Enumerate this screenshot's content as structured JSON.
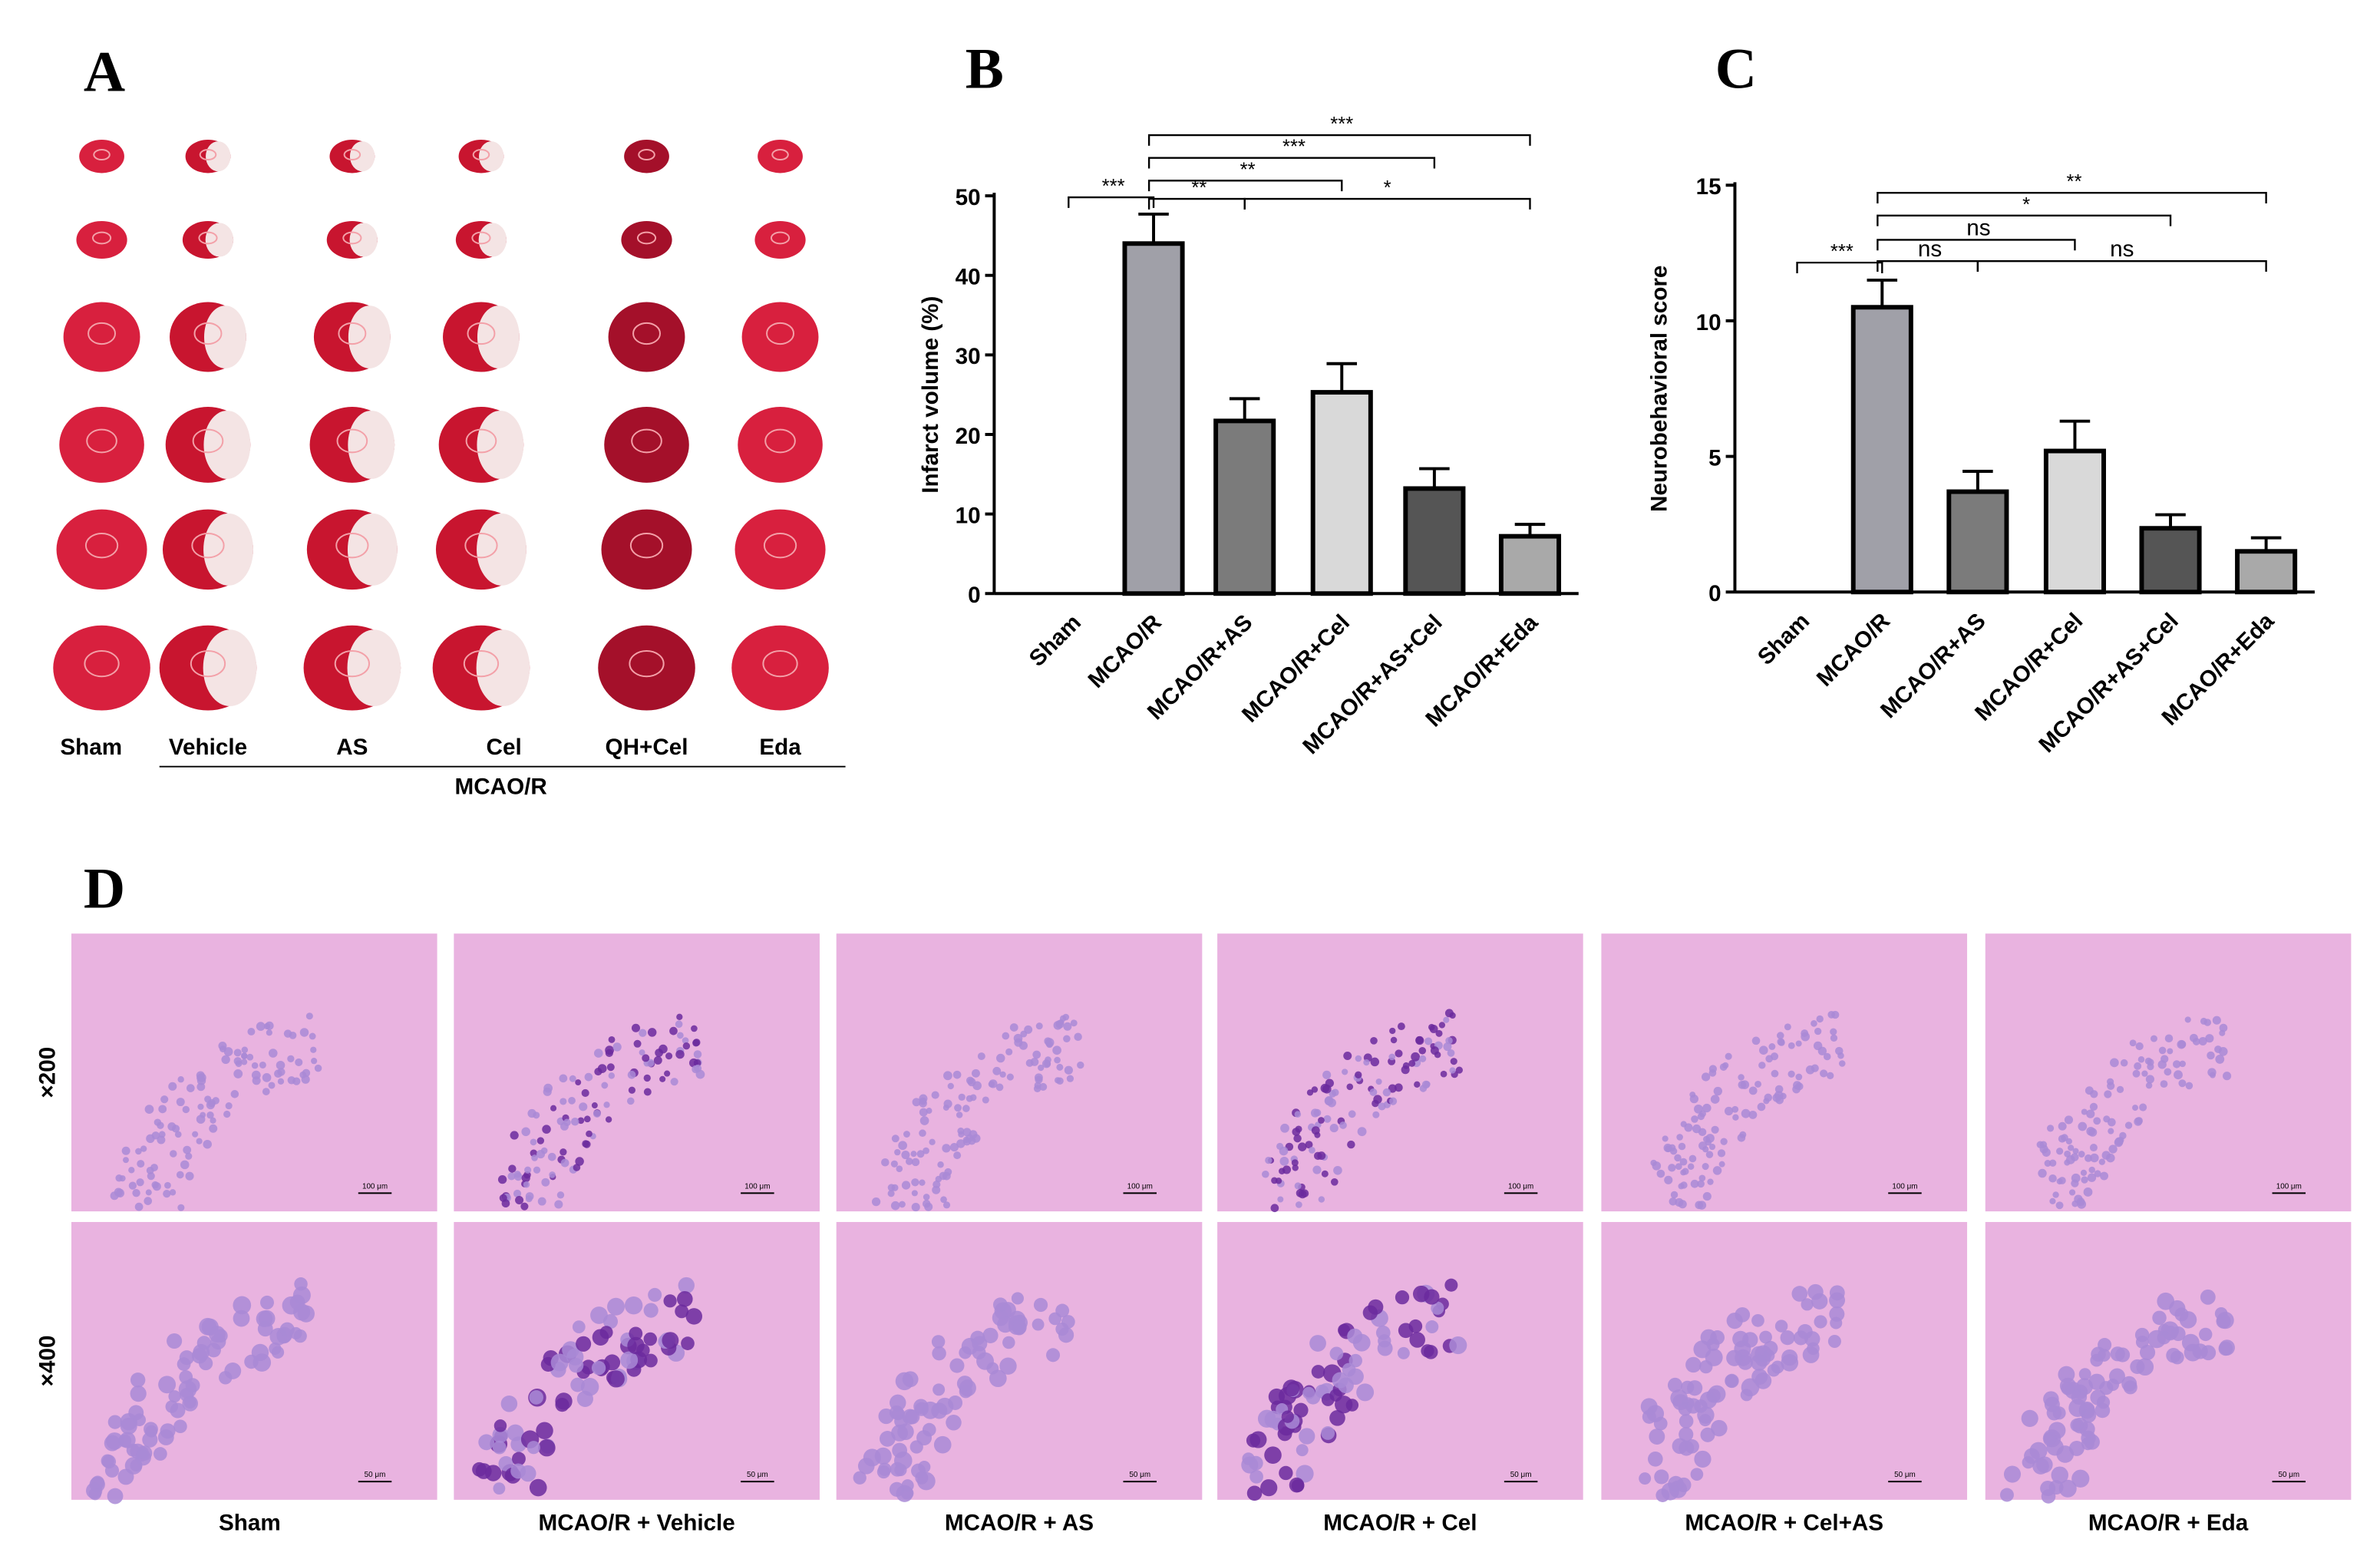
{
  "panel_labels": [
    "A",
    "B",
    "C",
    "D"
  ],
  "panel_a": {
    "groups": [
      "Sham",
      "Vehicle",
      "AS",
      "Cel",
      "QH+Cel",
      "Eda"
    ],
    "model_label": "MCAO/R"
  },
  "panel_d": {
    "magnifications": [
      "×200",
      "×400"
    ],
    "groups": [
      "Sham",
      "MCAO/R + Vehicle",
      "MCAO/R + AS",
      "MCAO/R + Cel",
      "MCAO/R + Cel+AS",
      "MCAO/R + Eda"
    ],
    "scale_bars": [
      "100 μm",
      "50 μm"
    ]
  },
  "chart_data": [
    {
      "type": "bar",
      "ylabel": "Infarct volume (%)",
      "categories": [
        "Sham",
        "MCAO/R",
        "MCAO/R+AS",
        "MCAO/R+Cel",
        "MCAO/R+AS+Cel",
        "MCAO/R+Eda"
      ],
      "values": [
        0,
        44,
        21.7,
        25.3,
        13.2,
        7.2
      ],
      "errors": [
        0,
        3.7,
        2.8,
        3.6,
        2.5,
        1.5
      ],
      "colors": [
        "#ffffff",
        "#a0a0a8",
        "#7b7b7b",
        "#d9d9d9",
        "#555555",
        "#a9a9a9"
      ],
      "ylim": [
        0,
        50
      ],
      "yticks": [
        0,
        10,
        20,
        30,
        40,
        50
      ],
      "annotations": [
        {
          "text": "***",
          "from": 0,
          "to": 1
        },
        {
          "text": "**",
          "from": 1,
          "to": 2
        },
        {
          "text": "*",
          "from": 2,
          "to": 5
        },
        {
          "text": "**",
          "from": 1,
          "to": 3
        },
        {
          "text": "***",
          "from": 1,
          "to": 4
        },
        {
          "text": "***",
          "from": 1,
          "to": 5
        }
      ]
    },
    {
      "type": "bar",
      "ylabel": "Neurobehavioral score",
      "categories": [
        "Sham",
        "MCAO/R",
        "MCAO/R+AS",
        "MCAO/R+Cel",
        "MCAO/R+AS+Cel",
        "MCAO/R+Eda"
      ],
      "values": [
        0,
        10.5,
        3.7,
        5.2,
        2.35,
        1.5
      ],
      "errors": [
        0,
        1,
        0.75,
        1.1,
        0.5,
        0.5
      ],
      "colors": [
        "#ffffff",
        "#a0a0a8",
        "#7b7b7b",
        "#d9d9d9",
        "#555555",
        "#a9a9a9"
      ],
      "ylim": [
        0,
        15
      ],
      "yticks": [
        0,
        5,
        10,
        15
      ],
      "annotations": [
        {
          "text": "***",
          "from": 0,
          "to": 1
        },
        {
          "text": "ns",
          "from": 1,
          "to": 2
        },
        {
          "text": "ns",
          "from": 2,
          "to": 5
        },
        {
          "text": "ns",
          "from": 1,
          "to": 3
        },
        {
          "text": "*",
          "from": 1,
          "to": 4
        },
        {
          "text": "**",
          "from": 1,
          "to": 5
        }
      ]
    }
  ]
}
